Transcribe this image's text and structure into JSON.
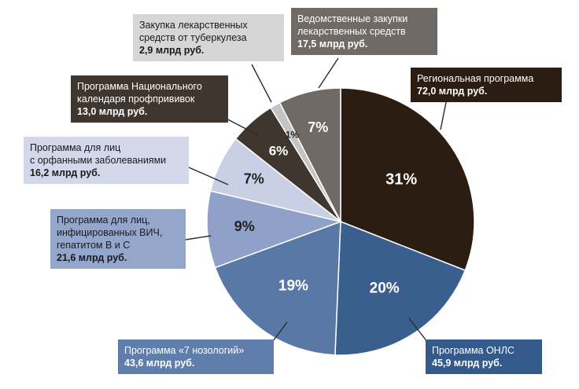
{
  "chart_data": {
    "type": "pie",
    "slices": [
      {
        "label": "Региональная программа",
        "value_text": "72,0 млрд руб.",
        "value": 72.0,
        "percent": 31,
        "percent_label": "31%",
        "color": "#2b1d12",
        "label_bg": "#2b1d12",
        "label_fg": "#ffffff"
      },
      {
        "label": "Программа ОНЛС",
        "value_text": "45,9 млрд руб.",
        "value": 45.9,
        "percent": 20,
        "percent_label": "20%",
        "color": "#3a5f8f",
        "label_bg": "#345a8c",
        "label_fg": "#ffffff"
      },
      {
        "label": "Программа «7 нозологий»",
        "value_text": "43,6 млрд руб.",
        "value": 43.6,
        "percent": 19,
        "percent_label": "19%",
        "color": "#5878a6",
        "label_bg": "#5f7eab",
        "label_fg": "#ffffff"
      },
      {
        "label": "Программа для лиц,\nинфицированных ВИЧ,\nгепатитом В и С",
        "value_text": "21,6 млрд руб.",
        "value": 21.6,
        "percent": 9,
        "percent_label": "9%",
        "color": "#8fa1c8",
        "label_bg": "#95a6cb",
        "label_fg": "#1a1a1a"
      },
      {
        "label": "Программа для лиц\nс орфанными заболеваниями",
        "value_text": "16,2 млрд руб.",
        "value": 16.2,
        "percent": 7,
        "percent_label": "7%",
        "color": "#c9d0e6",
        "label_bg": "#d2d8ea",
        "label_fg": "#1a1a1a"
      },
      {
        "label": "Программа Национального\nкалендаря профпрививок",
        "value_text": "13,0 млрд руб.",
        "value": 13.0,
        "percent": 6,
        "percent_label": "6%",
        "color": "#3f3630",
        "label_bg": "#3f3630",
        "label_fg": "#ffffff"
      },
      {
        "label": "Закупка лекарственных\nсредств от туберкулеза",
        "value_text": "2,9 млрд руб.",
        "value": 2.9,
        "percent": 1,
        "percent_label": "1%",
        "color": "#c4c4c4",
        "label_bg": "#d6d6d6",
        "label_fg": "#1a1a1a"
      },
      {
        "label": "Ведомственные закупки\nлекарственных средств",
        "value_text": "17,5 млрд руб.",
        "value": 17.5,
        "percent": 7,
        "percent_label": "7%",
        "color": "#6f6a66",
        "label_bg": "#6f6a66",
        "label_fg": "#ffffff"
      }
    ]
  }
}
